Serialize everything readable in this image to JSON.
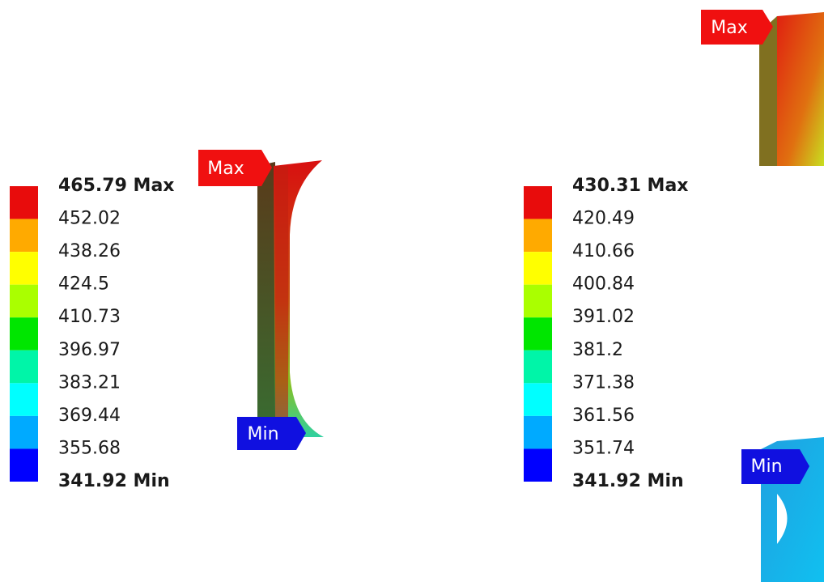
{
  "panels": [
    {
      "legend": {
        "labels": [
          "465.79 Max",
          "452.02",
          "438.26",
          "424.5",
          "410.73",
          "396.97",
          "383.21",
          "369.44",
          "355.68",
          "341.92 Min"
        ],
        "colors": [
          "#e80c0c",
          "#ffaa00",
          "#ffff00",
          "#aaff00",
          "#00e600",
          "#00f5a8",
          "#00ffff",
          "#00aaff",
          "#0000ff"
        ]
      },
      "max_tag": "Max",
      "min_tag": "Min"
    },
    {
      "legend": {
        "labels": [
          "430.31 Max",
          "420.49",
          "410.66",
          "400.84",
          "391.02",
          "381.2",
          "371.38",
          "361.56",
          "351.74",
          "341.92 Min"
        ],
        "colors": [
          "#e80c0c",
          "#ffaa00",
          "#ffff00",
          "#aaff00",
          "#00e600",
          "#00f5a8",
          "#00ffff",
          "#00aaff",
          "#0000ff"
        ]
      },
      "max_tag": "Max",
      "min_tag": "Min"
    }
  ]
}
